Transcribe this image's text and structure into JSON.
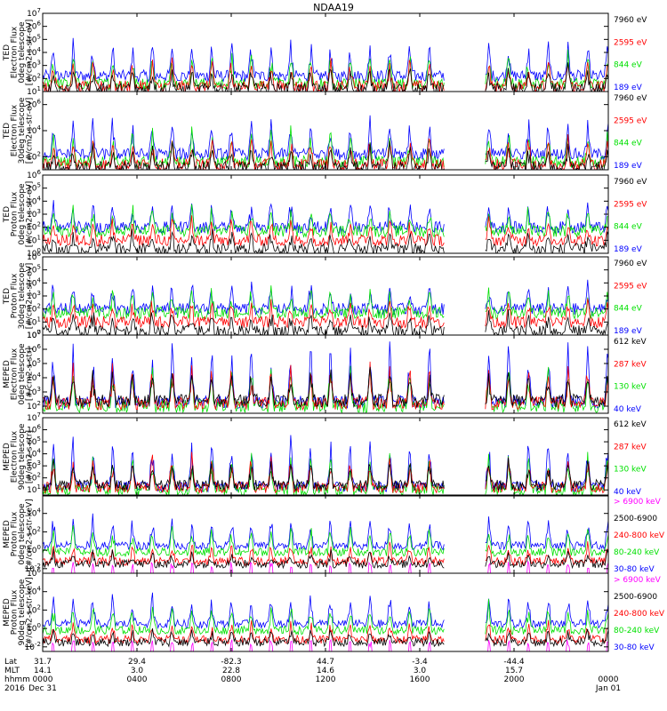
{
  "title": "NDAA19",
  "colors": {
    "black": "#000000",
    "red": "#ff0000",
    "green": "#00e000",
    "blue": "#0000ff",
    "magenta": "#ff00ff"
  },
  "chart_data": [
    {
      "type": "line",
      "ylabel": [
        "TED",
        "Electron Flux",
        "0deg telescope",
        "[#/cm2-s-str-eV]"
      ],
      "yscale": "log",
      "ytick_labels": [
        "10^1",
        "10^2",
        "10^3",
        "10^4",
        "10^5",
        "10^6",
        "10^7"
      ],
      "yrange_exp": [
        1,
        7
      ],
      "legend": [
        {
          "label": "7960 eV",
          "color": "black"
        },
        {
          "label": "2595 eV",
          "color": "red"
        },
        {
          "label": "844 eV",
          "color": "green"
        },
        {
          "label": "189 eV",
          "color": "blue"
        }
      ]
    },
    {
      "type": "line",
      "ylabel": [
        "TED",
        "Electron Flux",
        "30deg telescope",
        "[#/cm2-s-str-eV]"
      ],
      "yscale": "log",
      "ytick_labels": [
        "10^2",
        "10^4",
        "10^6"
      ],
      "yrange_exp": [
        1,
        7
      ],
      "legend": [
        {
          "label": "7960 eV",
          "color": "black"
        },
        {
          "label": "2595 eV",
          "color": "red"
        },
        {
          "label": "844 eV",
          "color": "green"
        },
        {
          "label": "189 eV",
          "color": "blue"
        }
      ]
    },
    {
      "type": "line",
      "ylabel": [
        "TED",
        "Proton Flux",
        "0deg telescope",
        "[#/cm2-s-str-eV]"
      ],
      "yscale": "log",
      "ytick_labels": [
        "10^0",
        "10^1",
        "10^2",
        "10^3",
        "10^4",
        "10^5",
        "10^6"
      ],
      "yrange_exp": [
        0,
        6
      ],
      "legend": [
        {
          "label": "7960 eV",
          "color": "black"
        },
        {
          "label": "2595 eV",
          "color": "red"
        },
        {
          "label": "844 eV",
          "color": "green"
        },
        {
          "label": "189 eV",
          "color": "blue"
        }
      ]
    },
    {
      "type": "line",
      "ylabel": [
        "TED",
        "Proton Flux",
        "30deg telescope",
        "[#/cm2-s-str-eV]"
      ],
      "yscale": "log",
      "ytick_labels": [
        "10^0",
        "10^1",
        "10^2",
        "10^3",
        "10^4",
        "10^5",
        "10^6"
      ],
      "yrange_exp": [
        0,
        6
      ],
      "legend": [
        {
          "label": "7960 eV",
          "color": "black"
        },
        {
          "label": "2595 eV",
          "color": "red"
        },
        {
          "label": "844 eV",
          "color": "green"
        },
        {
          "label": "189 eV",
          "color": "blue"
        }
      ]
    },
    {
      "type": "line",
      "ylabel": [
        "MEPED",
        "Electron Flux",
        "0deg telescope",
        "[#/cm2-s-str]"
      ],
      "yscale": "log",
      "ytick_labels": [
        "10^2",
        "10^3",
        "10^4",
        "10^5",
        "10^6",
        "10^7"
      ],
      "yrange_exp": [
        1.5,
        7
      ],
      "legend": [
        {
          "label": "612 keV",
          "color": "black"
        },
        {
          "label": "287 keV",
          "color": "red"
        },
        {
          "label": "130 keV",
          "color": "green"
        },
        {
          "label": "40 keV",
          "color": "blue"
        }
      ]
    },
    {
      "type": "line",
      "ylabel": [
        "MEPED",
        "Electron Flux",
        "90deg telescope",
        "[#/cm2-s-str]"
      ],
      "yscale": "log",
      "ytick_labels": [
        "10^1",
        "10^2",
        "10^3",
        "10^4",
        "10^5",
        "10^6",
        "10^7"
      ],
      "yrange_exp": [
        0.5,
        7
      ],
      "legend": [
        {
          "label": "612 keV",
          "color": "black"
        },
        {
          "label": "287 keV",
          "color": "red"
        },
        {
          "label": "130 keV",
          "color": "green"
        },
        {
          "label": "40 keV",
          "color": "blue"
        }
      ]
    },
    {
      "type": "line",
      "ylabel": [
        "MEPED",
        "Proton Flux",
        "0deg telescope",
        "[#/cm2-s-str-keV]"
      ],
      "yscale": "log",
      "ytick_labels": [
        "10^-2",
        "10^0",
        "10^2",
        "10^4"
      ],
      "yrange_exp": [
        -2.5,
        6
      ],
      "legend": [
        {
          "label": "> 6900 keV",
          "color": "magenta"
        },
        {
          "label": "2500-6900",
          "color": "black"
        },
        {
          "label": "240-800 keV",
          "color": "red"
        },
        {
          "label": "80-240 keV",
          "color": "green"
        },
        {
          "label": "30-80 keV",
          "color": "blue"
        }
      ]
    },
    {
      "type": "line",
      "ylabel": [
        "MEPED",
        "Proton Flux",
        "90deg telescope",
        "[#/cm2-s-str-keV]"
      ],
      "yscale": "log",
      "ytick_labels": [
        "10^-2",
        "10^0",
        "10^2",
        "10^4",
        "10^6"
      ],
      "yrange_exp": [
        -2.5,
        6
      ],
      "legend": [
        {
          "label": "> 6900 keV",
          "color": "magenta"
        },
        {
          "label": "2500-6900",
          "color": "black"
        },
        {
          "label": "240-800 keV",
          "color": "red"
        },
        {
          "label": "80-240 keV",
          "color": "green"
        },
        {
          "label": "30-80 keV",
          "color": "blue"
        }
      ]
    }
  ],
  "x_axis": {
    "row_labels": [
      "Lat",
      "MLT",
      "hhmm",
      "2016"
    ],
    "hours": [
      0,
      4,
      8,
      12,
      16,
      20,
      24
    ],
    "lat": [
      "31.7",
      "29.4",
      "-82.3",
      "44.7",
      "-3.4",
      "-44.4",
      ""
    ],
    "mlt": [
      "14.1",
      "3.0",
      "22.8",
      "14.6",
      "3.0",
      "15.7",
      ""
    ],
    "hhmm": [
      "0000",
      "0400",
      "0800",
      "1200",
      "1600",
      "2000",
      "0000"
    ],
    "date": [
      "Dec 31",
      "",
      "",
      "",
      "",
      "",
      "Jan 01"
    ]
  },
  "data_gap_hours": [
    [
      17.05,
      18.75
    ]
  ]
}
